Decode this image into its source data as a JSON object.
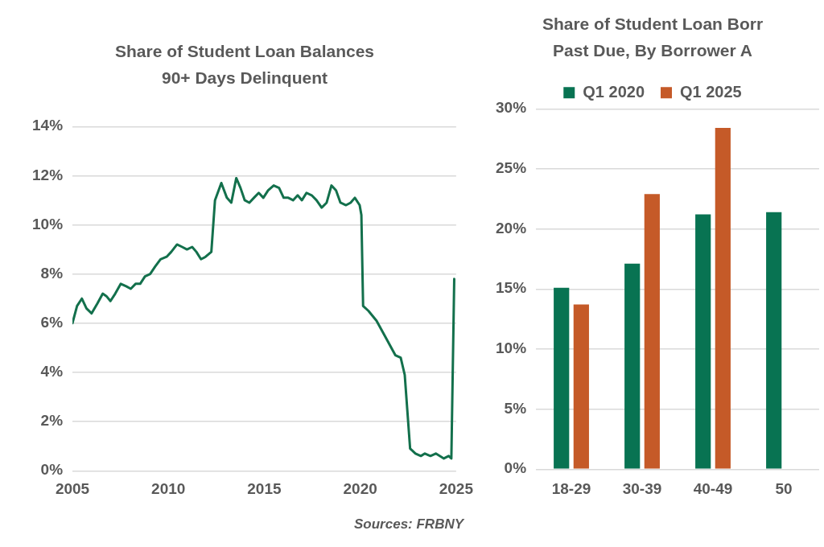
{
  "chart_data": [
    {
      "type": "line",
      "title": "Share of Student Loan Balances\n90+ Days Delinquent",
      "x": [
        2005,
        2005.24,
        2005.49,
        2005.73,
        2006,
        2006.3,
        2006.58,
        2006.77,
        2006.98,
        2007.23,
        2007.52,
        2007.8,
        2008.04,
        2008.29,
        2008.53,
        2008.78,
        2009.05,
        2009.31,
        2009.59,
        2009.91,
        2010.15,
        2010.45,
        2010.72,
        2010.97,
        2011.24,
        2011.46,
        2011.7,
        2011.94,
        2012.24,
        2012.43,
        2012.76,
        2013.05,
        2013.28,
        2013.54,
        2013.76,
        2013.98,
        2014.22,
        2014.46,
        2014.71,
        2014.95,
        2015.2,
        2015.49,
        2015.77,
        2016.01,
        2016.25,
        2016.5,
        2016.74,
        2016.96,
        2017.2,
        2017.47,
        2017.72,
        2017.99,
        2018.25,
        2018.5,
        2018.74,
        2018.97,
        2019.26,
        2019.5,
        2019.72,
        2019.97,
        2020.06,
        2020.15,
        2020.43,
        2020.85,
        2021.27,
        2021.83,
        2022.11,
        2022.32,
        2022.6,
        2022.88,
        2023.16,
        2023.37,
        2023.66,
        2023.94,
        2024.36,
        2024.61,
        2024.75,
        2024.9
      ],
      "series": [
        {
          "color": "#13704c",
          "values": [
            6.0,
            6.7,
            7.0,
            6.6,
            6.4,
            6.8,
            7.2,
            7.1,
            6.9,
            7.2,
            7.6,
            7.5,
            7.4,
            7.6,
            7.6,
            7.9,
            8.0,
            8.3,
            8.6,
            8.7,
            8.9,
            9.2,
            9.1,
            9.0,
            9.1,
            8.9,
            8.6,
            8.7,
            8.9,
            11.0,
            11.7,
            11.1,
            10.9,
            11.9,
            11.5,
            11.0,
            10.9,
            11.1,
            11.3,
            11.1,
            11.4,
            11.6,
            11.5,
            11.1,
            11.1,
            11.0,
            11.2,
            11.0,
            11.3,
            11.2,
            11.0,
            10.7,
            10.9,
            11.6,
            11.4,
            10.9,
            10.8,
            10.9,
            11.1,
            10.8,
            10.4,
            6.7,
            6.5,
            6.1,
            5.5,
            4.7,
            4.6,
            3.9,
            0.9,
            0.7,
            0.6,
            0.7,
            0.6,
            0.7,
            0.5,
            0.6,
            0.5,
            7.8
          ]
        }
      ],
      "xlim": [
        2005,
        2025
      ],
      "xticks": [
        2005,
        2010,
        2015,
        2020,
        2025
      ],
      "ylim": [
        0,
        14
      ],
      "yticks": [
        {
          "value": 0,
          "label": "0%"
        },
        {
          "value": 2,
          "label": "2%"
        },
        {
          "value": 4,
          "label": "4%"
        },
        {
          "value": 6,
          "label": "6%"
        },
        {
          "value": 8,
          "label": "8%"
        },
        {
          "value": 10,
          "label": "10%"
        },
        {
          "value": 12,
          "label": "12%"
        },
        {
          "value": 14,
          "label": "14%"
        }
      ],
      "grid": "y",
      "marker": "none",
      "line_style": "solid",
      "annotations": [
        "Sources: FRBNY"
      ]
    },
    {
      "type": "bar",
      "title": "Share of Student Loan Borr\nPast Due, By Borrower A",
      "categories": [
        "18-29",
        "30-39",
        "40-49",
        "50"
      ],
      "series": [
        {
          "name": "Q1 2020",
          "color": "#087352",
          "values": [
            15.1,
            17.1,
            21.2,
            21.4
          ]
        },
        {
          "name": "Q1 2025",
          "color": "#c55a28",
          "values": [
            13.7,
            22.9,
            28.4,
            null
          ]
        }
      ],
      "ylim": [
        0,
        30
      ],
      "yticks": [
        {
          "value": 0,
          "label": "0%"
        },
        {
          "value": 5,
          "label": "5%"
        },
        {
          "value": 10,
          "label": "10%"
        },
        {
          "value": 15,
          "label": "15%"
        },
        {
          "value": 20,
          "label": "20%"
        },
        {
          "value": 25,
          "label": "25%"
        },
        {
          "value": 30,
          "label": "30%"
        }
      ],
      "grid": "y",
      "legend": "top"
    }
  ]
}
